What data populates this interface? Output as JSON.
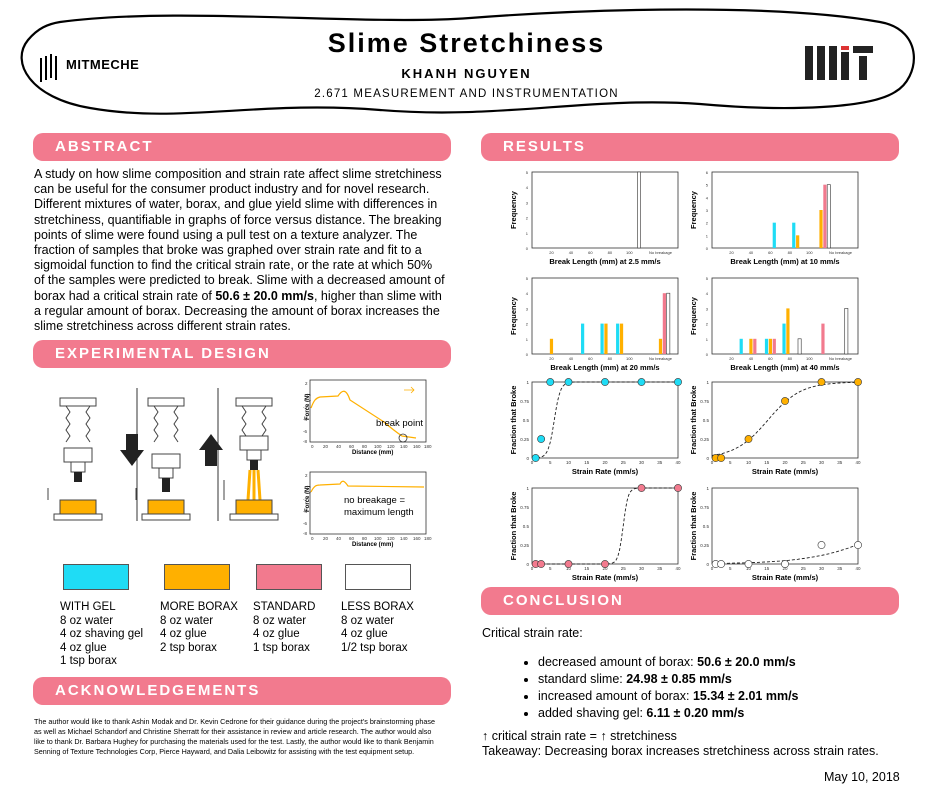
{
  "header": {
    "title": "Slime Stretchiness",
    "author": "KHANH NGUYEN",
    "course": "2.671 MEASUREMENT AND INSTRUMENTATION",
    "left_logo_text": "MITMECHE"
  },
  "sections": {
    "abstract": "ABSTRACT",
    "experimental": "EXPERIMENTAL DESIGN",
    "acknowledgements": "ACKNOWLEDGEMENTS",
    "results": "RESULTS",
    "conclusion": "CONCLUSION"
  },
  "abstract": {
    "lines": [
      "A study on how slime composition and strain rate affect slime stretchiness",
      "can be useful for the consumer product industry and for novel research.",
      "Different mixtures of water, borax, and glue yield slime with differences in",
      "stretchiness, quantifiable in graphs of force versus distance. The breaking",
      "points of slime were found using a pull test on a texture analyzer. The",
      "fraction of samples that broke was graphed over strain rate and fit to a",
      "sigmoidal function to find the critical strain rate, or the rate at which 50%",
      "of the samples were predicted to break. Slime with a decreased amount of"
    ],
    "line9_pre": "borax had a critical strain rate of ",
    "line9_bold": "50.6  ± 20.0 mm/s",
    "line9_post": ", higher than slime with",
    "line10": "a regular amount of borax. Decreasing the amount of borax increases the",
    "line11": "slime stretchiness across different strain rates."
  },
  "experiment": {
    "force_plot_1": {
      "ylabel": "Force (N)",
      "xlabel": "Distance (mm)",
      "annotation": "break point",
      "yticks": [
        "2",
        "0",
        "-2",
        "-4",
        "-6",
        "-8"
      ],
      "xticks": [
        "0",
        "20",
        "40",
        "60",
        "80",
        "100",
        "120",
        "140",
        "160",
        "180"
      ]
    },
    "force_plot_2": {
      "ylabel": "Force (N)",
      "xlabel": "Distance (mm)",
      "annotation_1": "no breakage =",
      "annotation_2": "maximum length",
      "yticks": [
        "2",
        "0",
        "-2",
        "-4",
        "-6",
        "-8"
      ],
      "xticks": [
        "0",
        "20",
        "40",
        "60",
        "80",
        "100",
        "120",
        "140",
        "160",
        "180"
      ]
    }
  },
  "legend": [
    {
      "color": "#1fdcf5",
      "title": "WITH GEL",
      "lines": [
        "8 oz water",
        "4 oz shaving gel",
        "4 oz glue",
        "1 tsp borax"
      ]
    },
    {
      "color": "#ffb000",
      "title": "MORE BORAX",
      "lines": [
        "8 oz water",
        "4 oz glue",
        "2 tsp borax"
      ]
    },
    {
      "color": "#f27a8e",
      "title": "STANDARD",
      "lines": [
        "8 oz water",
        "4 oz glue",
        "1 tsp borax"
      ]
    },
    {
      "color": "#ffffff",
      "title": "LESS BORAX",
      "lines": [
        "8 oz water",
        "4 oz glue",
        "1/2 tsp borax"
      ]
    }
  ],
  "acknowledgements": {
    "lines": [
      "The author would like to thank Ashin Modak and Dr. Kevin Cedrone for their guidance during the project’s brainstorming phase",
      "as well as Michael Schandorf and Christine Sherratt for their assistance in review and article research. The author would also",
      "like to thank Dr. Barbara Hughey for purchasing the materials used for the test. Lastly, the author would like to thank Benjamin",
      "Senning of Texture Technologies Corp, Pierce Hayward, and Dalia Leibowitz for assisting with the test equipment setup."
    ]
  },
  "conclusion": {
    "heading": "Critical strain rate:",
    "items": [
      {
        "label": "decreased amount of borax: ",
        "value": "50.6 ± 20.0 mm/s"
      },
      {
        "label": "standard slime:  ",
        "value": "24.98 ± 0.85 mm/s"
      },
      {
        "label": "increased amount of borax: ",
        "value": "15.34 ± 2.01 mm/s"
      },
      {
        "label": "added shaving gel: ",
        "value": "6.11 ± 0.20 mm/s"
      }
    ],
    "relation": "↑ critical strain rate = ↑ stretchiness",
    "takeaway": "Takeaway: Decreasing borax increases stretchiness across strain rates.",
    "date": "May 10, 2018"
  },
  "chart_data": [
    {
      "type": "bar",
      "xlabel": "Break Length (mm) at 2.5 mm/s",
      "ylabel": "Frequency",
      "categories": [
        "20",
        "40",
        "60",
        "80",
        "100",
        "No breakage"
      ],
      "ylim": [
        0,
        5
      ],
      "series": [
        {
          "color": "#1fdcf5",
          "points": [
            [
              5.5,
              5
            ]
          ]
        },
        {
          "color": "#ffb000",
          "points": [
            [
              5.5,
              5
            ]
          ]
        },
        {
          "color": "#f27a8e",
          "points": [
            [
              5.5,
              5
            ]
          ]
        },
        {
          "color": "#ffffff",
          "points": [
            [
              5.5,
              5
            ]
          ]
        }
      ]
    },
    {
      "type": "bar",
      "xlabel": "Break Length (mm) at 10 mm/s",
      "ylabel": "Frequency",
      "categories": [
        "20",
        "40",
        "60",
        "80",
        "100",
        "No breakage"
      ],
      "ylim": [
        0,
        6
      ],
      "series": [
        {
          "color": "#1fdcf5",
          "points": [
            [
              3.2,
              2
            ],
            [
              4.2,
              2
            ]
          ]
        },
        {
          "color": "#ffb000",
          "points": [
            [
              4.4,
              1
            ],
            [
              5.6,
              3
            ]
          ]
        },
        {
          "color": "#f27a8e",
          "points": [
            [
              5.8,
              5
            ]
          ]
        },
        {
          "color": "#ffffff",
          "points": [
            [
              6.0,
              5
            ]
          ]
        }
      ]
    },
    {
      "type": "bar",
      "xlabel": "Break Length (mm) at 20 mm/s",
      "ylabel": "Frequency",
      "categories": [
        "20",
        "40",
        "60",
        "80",
        "100",
        "No breakage"
      ],
      "ylim": [
        0,
        5
      ],
      "series": [
        {
          "color": "#1fdcf5",
          "points": [
            [
              2.6,
              2
            ],
            [
              3.6,
              2
            ],
            [
              4.4,
              2
            ]
          ]
        },
        {
          "color": "#ffb000",
          "points": [
            [
              1.0,
              1
            ],
            [
              3.8,
              2
            ],
            [
              4.6,
              2
            ],
            [
              6.6,
              1
            ]
          ]
        },
        {
          "color": "#f27a8e",
          "points": [
            [
              6.8,
              4
            ]
          ]
        },
        {
          "color": "#ffffff",
          "points": [
            [
              7.0,
              4
            ]
          ]
        }
      ]
    },
    {
      "type": "bar",
      "xlabel": "Break Length (mm) at 40 mm/s",
      "ylabel": "Frequency",
      "categories": [
        "20",
        "40",
        "60",
        "80",
        "100",
        "No breakage"
      ],
      "ylim": [
        0,
        5
      ],
      "series": [
        {
          "color": "#1fdcf5",
          "points": [
            [
              1.5,
              1
            ],
            [
              2.8,
              1
            ],
            [
              3.7,
              2
            ]
          ]
        },
        {
          "color": "#ffb000",
          "points": [
            [
              2.0,
              1
            ],
            [
              3.0,
              1
            ],
            [
              3.9,
              3
            ]
          ]
        },
        {
          "color": "#f27a8e",
          "points": [
            [
              2.2,
              1
            ],
            [
              3.2,
              1
            ],
            [
              5.7,
              2
            ]
          ]
        },
        {
          "color": "#ffffff",
          "points": [
            [
              4.5,
              1
            ],
            [
              6.9,
              3
            ]
          ]
        }
      ]
    },
    {
      "type": "scatter",
      "xlabel": "Strain Rate (mm/s)",
      "ylabel": "Fraction that Broke",
      "color": "#1fdcf5",
      "xlim": [
        0,
        40
      ],
      "ylim": [
        0,
        1
      ],
      "points": [
        [
          1,
          0
        ],
        [
          2.5,
          0.25
        ],
        [
          5,
          1
        ],
        [
          10,
          1
        ],
        [
          20,
          1
        ],
        [
          30,
          1
        ],
        [
          40,
          1
        ]
      ],
      "fit_center": 6.11,
      "fit_k": 1.2
    },
    {
      "type": "scatter",
      "xlabel": "Strain Rate (mm/s)",
      "ylabel": "Fraction that Broke",
      "color": "#ffb000",
      "xlim": [
        0,
        40
      ],
      "ylim": [
        0,
        1
      ],
      "points": [
        [
          1,
          0
        ],
        [
          2.5,
          0
        ],
        [
          10,
          0.25
        ],
        [
          20,
          0.75
        ],
        [
          30,
          1
        ],
        [
          40,
          1
        ]
      ],
      "fit_center": 15.34,
      "fit_k": 0.22
    },
    {
      "type": "scatter",
      "xlabel": "Strain Rate (mm/s)",
      "ylabel": "Fraction that Broke",
      "color": "#f27a8e",
      "xlim": [
        0,
        40
      ],
      "ylim": [
        0,
        1
      ],
      "points": [
        [
          1,
          0
        ],
        [
          2.5,
          0
        ],
        [
          10,
          0
        ],
        [
          20,
          0
        ],
        [
          30,
          1
        ],
        [
          40,
          1
        ]
      ],
      "fit_center": 24.98,
      "fit_k": 1.5
    },
    {
      "type": "scatter",
      "xlabel": "Strain Rate (mm/s)",
      "ylabel": "Fraction that Broke",
      "color": "#ffffff",
      "xlim": [
        0,
        40
      ],
      "ylim": [
        0,
        1
      ],
      "points": [
        [
          1,
          0
        ],
        [
          2.5,
          0
        ],
        [
          10,
          0
        ],
        [
          20,
          0
        ],
        [
          30,
          0.25
        ],
        [
          40,
          0.25
        ]
      ],
      "fit_center": 50.6,
      "fit_k": 0.1
    }
  ]
}
